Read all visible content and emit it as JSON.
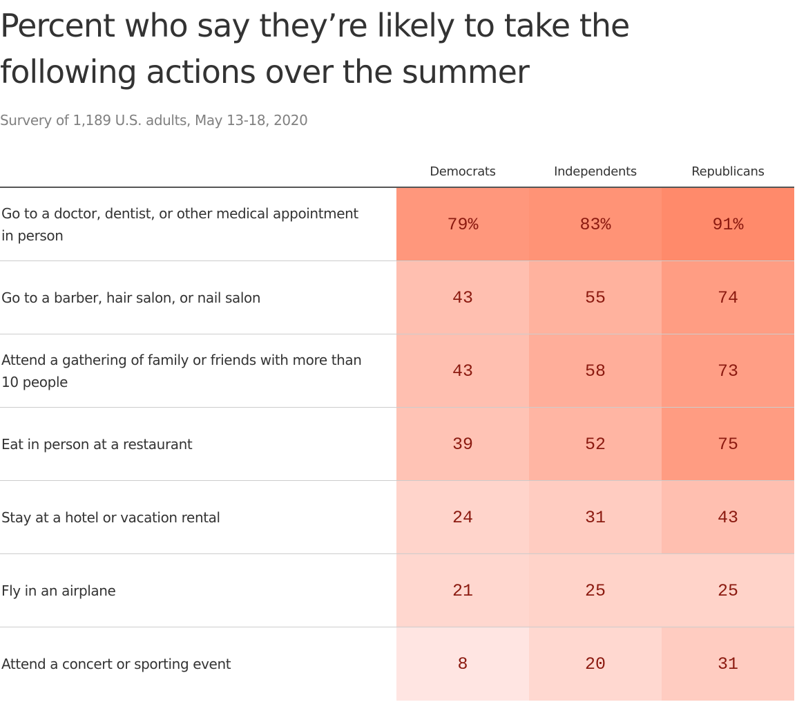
{
  "title": "Percent who say they’re likely to take the following actions over the summer",
  "subtitle": "Survery of 1,189 U.S. adults, May 13-18, 2020",
  "colors": {
    "text": "#333333",
    "value_text": "#8b1a10",
    "scale_low": "#ffeeed",
    "scale_high": "#ff8a6b"
  },
  "chart_data": {
    "type": "table",
    "title": "Percent who say they’re likely to take the following actions over the summer",
    "subtitle": "Survery of 1,189 U.S. adults, May 13-18, 2020",
    "columns": [
      "Democrats",
      "Independents",
      "Republicans"
    ],
    "rows": [
      {
        "label": "Go to a doctor, dentist, or other medical appointment in person",
        "values": [
          79,
          83,
          91
        ],
        "display": [
          "79%",
          "83%",
          "91%"
        ]
      },
      {
        "label": "Go to a barber, hair salon, or nail salon",
        "values": [
          43,
          55,
          74
        ],
        "display": [
          "43",
          "55",
          "74"
        ]
      },
      {
        "label": "Attend a gathering of family or friends with more than 10 people",
        "values": [
          43,
          58,
          73
        ],
        "display": [
          "43",
          "58",
          "73"
        ]
      },
      {
        "label": "Eat in person at a restaurant",
        "values": [
          39,
          52,
          75
        ],
        "display": [
          "39",
          "52",
          "75"
        ]
      },
      {
        "label": "Stay at a hotel or vacation rental",
        "values": [
          24,
          31,
          43
        ],
        "display": [
          "24",
          "31",
          "43"
        ]
      },
      {
        "label": "Fly in an airplane",
        "values": [
          21,
          25,
          25
        ],
        "display": [
          "21",
          "25",
          "25"
        ]
      },
      {
        "label": "Attend a concert or sporting event",
        "values": [
          8,
          20,
          31
        ],
        "display": [
          "8",
          "20",
          "31"
        ]
      }
    ],
    "unit": "%"
  }
}
